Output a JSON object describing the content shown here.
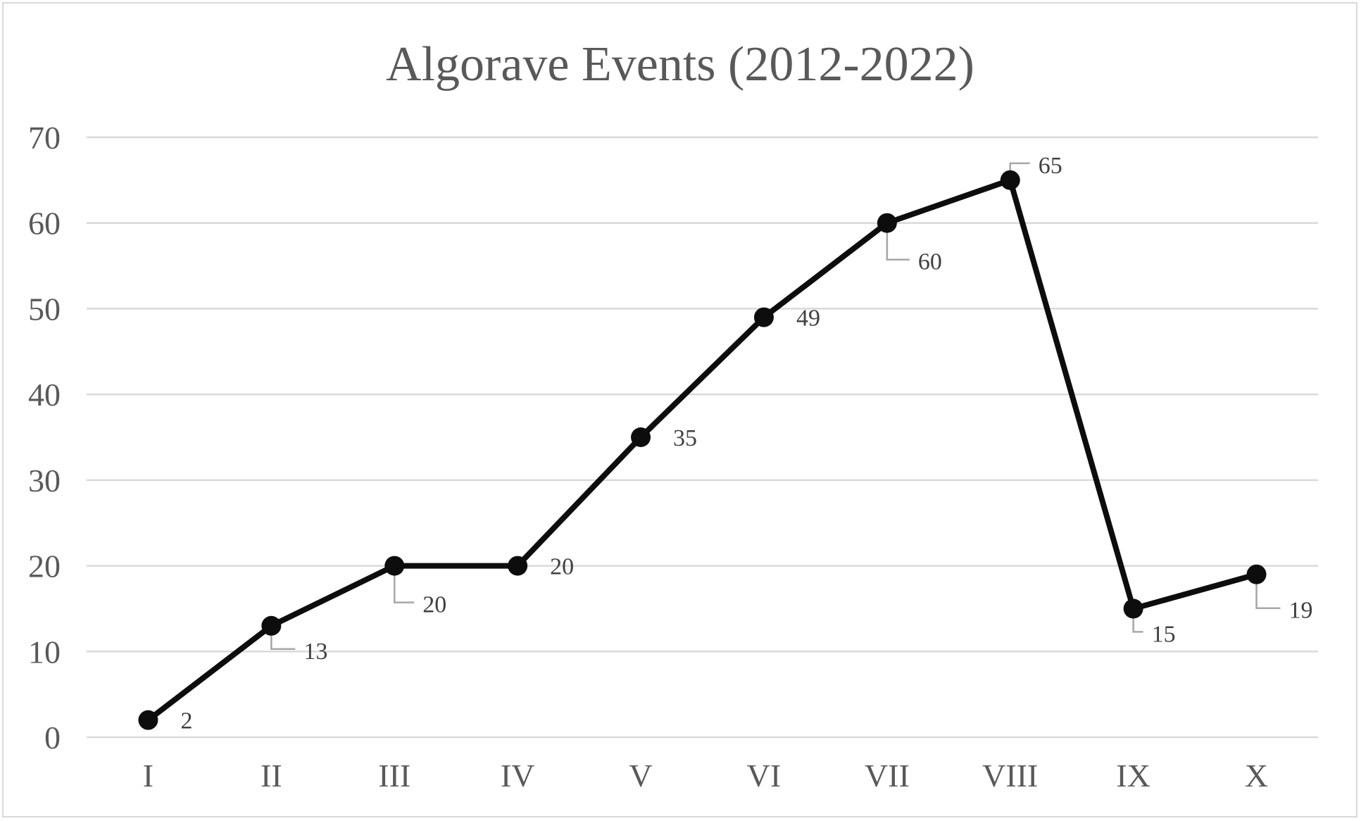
{
  "chart_data": {
    "type": "line",
    "title": "Algorave Events (2012-2022)",
    "categories": [
      "I",
      "II",
      "III",
      "IV",
      "V",
      "VI",
      "VII",
      "VIII",
      "IX",
      "X"
    ],
    "series": [
      {
        "values": [
          2,
          13,
          20,
          20,
          35,
          49,
          60,
          65,
          15,
          19
        ]
      }
    ],
    "data_labels": [
      "2",
      "13",
      "20",
      "20",
      "35",
      "49",
      "60",
      "65",
      "15",
      "19"
    ],
    "ylim": [
      0,
      70
    ],
    "yticks": [
      0,
      10,
      20,
      30,
      40,
      50,
      60,
      70
    ],
    "ytick_labels": [
      "0",
      "10",
      "20",
      "30",
      "40",
      "50",
      "60",
      "70"
    ],
    "xlabel": "",
    "ylabel": "",
    "grid": "horizontal",
    "legend": "none",
    "colors": {
      "line": "#0d0d0d",
      "marker": "#0d0d0d",
      "grid": "#d9d9d9",
      "text": "#595959",
      "leader": "#a6a6a6",
      "frame": "#d9d9d9"
    }
  }
}
